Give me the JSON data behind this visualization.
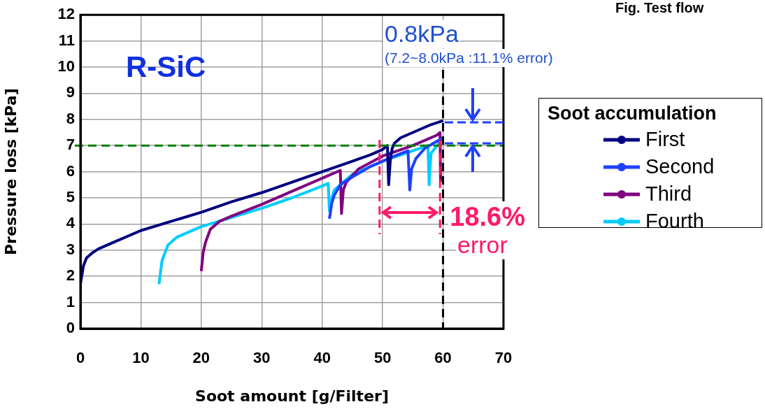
{
  "chart_data": {
    "type": "line",
    "xlabel": "Soot amount [g/Filter]",
    "ylabel": "Pressure loss [kPa]",
    "legend_title": "Soot accumulation",
    "legend": "right",
    "grid": true,
    "line_style": "solid",
    "marker": "none",
    "xlim": [
      0,
      70
    ],
    "xticks": [
      0,
      10,
      20,
      30,
      40,
      50,
      60,
      70
    ],
    "ylim": [
      0,
      12
    ],
    "yticks": [
      0,
      1,
      2,
      3,
      4,
      5,
      6,
      7,
      8,
      9,
      10,
      11,
      12
    ],
    "series": [
      {
        "name": "First",
        "color": "#000080",
        "x": [
          0,
          0.5,
          1,
          2,
          3,
          5,
          10,
          15,
          20,
          25,
          30,
          35,
          40,
          45,
          48,
          50,
          50.8,
          51,
          51.3,
          51.6,
          52,
          53,
          55,
          58,
          60
        ],
        "values": [
          1.7,
          2.4,
          2.7,
          2.9,
          3.05,
          3.25,
          3.75,
          4.1,
          4.45,
          4.85,
          5.2,
          5.6,
          6.0,
          6.4,
          6.65,
          6.85,
          7.0,
          5.5,
          6.5,
          6.9,
          7.1,
          7.3,
          7.5,
          7.8,
          7.95
        ]
      },
      {
        "name": "Second",
        "color": "#1f3fff",
        "x": [
          41.2,
          41.6,
          42,
          43,
          45,
          48,
          50,
          52,
          54.2,
          54.5,
          54.8,
          55.5,
          57,
          58.5,
          60
        ],
        "values": [
          4.2,
          4.8,
          5.1,
          5.5,
          5.8,
          6.2,
          6.4,
          6.6,
          6.8,
          5.3,
          6.1,
          6.5,
          6.9,
          7.1,
          7.3
        ]
      },
      {
        "name": "Third",
        "color": "#800080",
        "x": [
          20,
          20.3,
          20.7,
          21.5,
          23,
          25,
          30,
          35,
          40,
          43,
          43.2,
          43.5,
          44,
          46,
          50,
          55,
          59,
          59.5,
          59.6
        ],
        "values": [
          2.2,
          2.9,
          3.3,
          3.8,
          4.1,
          4.3,
          4.75,
          5.25,
          5.75,
          6.05,
          4.4,
          5.3,
          5.6,
          6.1,
          6.6,
          7.0,
          7.4,
          7.5,
          5.6
        ]
      },
      {
        "name": "Fourth",
        "color": "#00ccff",
        "x": [
          13,
          13.5,
          14.5,
          16,
          20,
          25,
          30,
          35,
          40,
          41,
          41.2,
          41.6,
          42,
          45,
          50,
          55,
          57.5,
          57.7,
          58,
          60
        ],
        "values": [
          1.7,
          2.6,
          3.2,
          3.5,
          3.9,
          4.25,
          4.6,
          5.0,
          5.45,
          5.55,
          4.5,
          5.0,
          5.3,
          5.9,
          6.4,
          6.8,
          7.0,
          5.5,
          6.7,
          7.3
        ]
      }
    ],
    "ref_lines": [
      {
        "axis": "y",
        "value": 7,
        "color": "#008000",
        "line_style": "dashed"
      },
      {
        "axis": "x",
        "value": 60,
        "color": "#000000",
        "line_style": "dashed"
      },
      {
        "axis": "x",
        "value": 49.5,
        "color": "#ff1a66",
        "line_style": "dashed"
      },
      {
        "axis": "x",
        "value": 59.5,
        "color": "#ff1a66",
        "line_style": "dashed"
      }
    ],
    "annotations": [
      "R-SiC",
      "0.8kPa",
      "(7.2~8.0kPa :11.1% error)",
      {
        "text": "18.6%",
        "x": 59.5,
        "y": 4.5
      },
      "error",
      "Fig. Test flow"
    ]
  }
}
